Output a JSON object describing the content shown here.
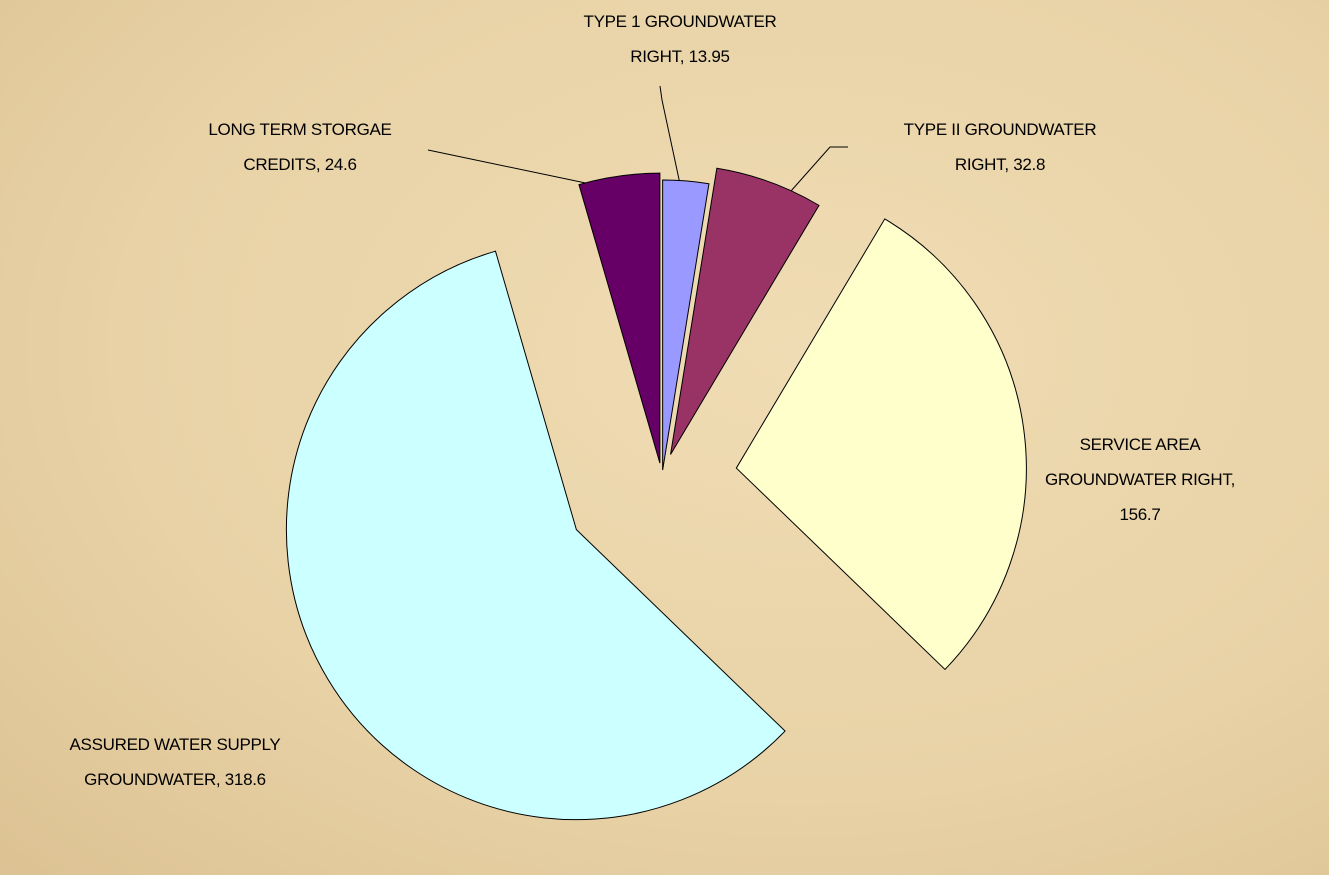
{
  "chart_data": {
    "type": "pie",
    "categories": [
      "TYPE 1 GROUNDWATER RIGHT",
      "TYPE II GROUNDWATER RIGHT",
      "SERVICE AREA GROUNDWATER RIGHT",
      "ASSURED WATER SUPPLY GROUNDWATER",
      "LONG TERM STORGAE CREDITS"
    ],
    "values": [
      13.95,
      32.8,
      156.7,
      318.6,
      24.6
    ],
    "colors": [
      "#9999ff",
      "#993366",
      "#ffffcc",
      "#ccffff",
      "#660066"
    ]
  }
}
